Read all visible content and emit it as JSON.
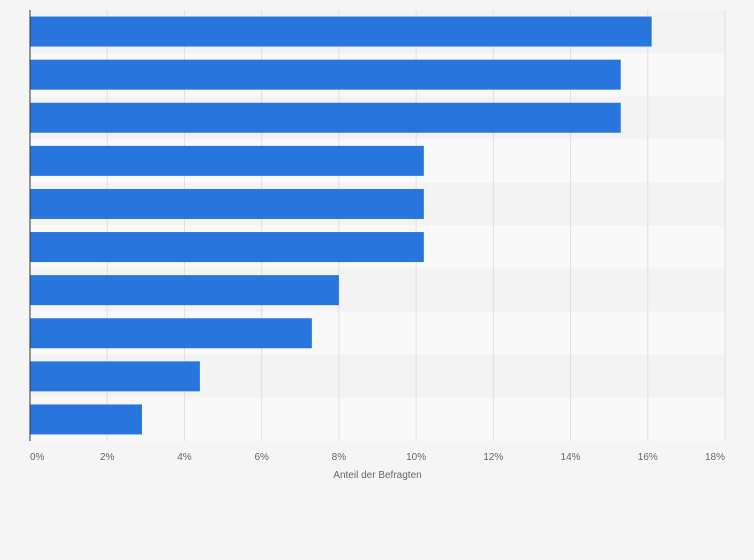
{
  "chart_data": {
    "type": "bar",
    "orientation": "horizontal",
    "values": [
      16.1,
      15.3,
      15.3,
      10.2,
      10.2,
      10.2,
      8.0,
      7.3,
      4.4,
      2.9
    ],
    "xlabel": "Anteil der Befragten",
    "xlim": [
      0,
      18
    ],
    "ticks": [
      "0%",
      "2%",
      "4%",
      "6%",
      "8%",
      "10%",
      "12%",
      "14%",
      "16%",
      "18%"
    ],
    "grid": true,
    "legend": "none",
    "colors": {
      "bar": "#2876dd",
      "band_light": "#f9f9f9",
      "band_dark": "#f3f3f3",
      "grid": "#e0e0e0",
      "axis": "#333333"
    }
  }
}
